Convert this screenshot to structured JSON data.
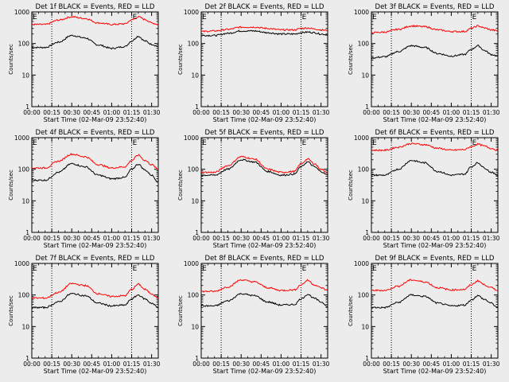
{
  "figure": {
    "xlabel": "Start Time (02-Mar-09 23:52:40)",
    "ylabel": "Counts/sec",
    "x_ticks": [
      "00:00",
      "00:15",
      "00:30",
      "00:45",
      "01:00",
      "01:15",
      "01:30"
    ],
    "y_ticks": [
      "1",
      "10",
      "100",
      "1000"
    ],
    "marker_labels": [
      "E",
      "E"
    ]
  },
  "colors": {
    "events": "#000000",
    "lld": "#ff0000",
    "background": "#ececec"
  },
  "chart_data": [
    {
      "type": "line",
      "title": "Det 1f BLACK = Events, RED = LLD",
      "x": [
        0,
        10,
        20,
        30,
        40,
        50,
        60,
        70,
        75,
        80,
        85,
        90,
        95
      ],
      "yscale": "log",
      "ylim": [
        1,
        1000
      ],
      "xlim": [
        0,
        95
      ],
      "series": [
        {
          "name": "Events",
          "values": [
            75,
            75,
            110,
            180,
            150,
            90,
            70,
            80,
            120,
            170,
            120,
            95,
            80
          ]
        },
        {
          "name": "LLD",
          "values": [
            400,
            400,
            550,
            700,
            620,
            450,
            400,
            420,
            560,
            700,
            580,
            450,
            400
          ]
        }
      ],
      "markers": [
        15,
        75
      ]
    },
    {
      "type": "line",
      "title": "Det 2f BLACK = Events, RED = LLD",
      "x": [
        0,
        10,
        20,
        30,
        40,
        50,
        60,
        70,
        75,
        80,
        85,
        90,
        95
      ],
      "yscale": "log",
      "ylim": [
        1,
        1000
      ],
      "xlim": [
        0,
        95
      ],
      "series": [
        {
          "name": "Events",
          "values": [
            180,
            180,
            210,
            250,
            250,
            220,
            200,
            200,
            220,
            230,
            220,
            200,
            190
          ]
        },
        {
          "name": "LLD",
          "values": [
            240,
            250,
            280,
            330,
            330,
            300,
            270,
            270,
            300,
            310,
            290,
            270,
            260
          ]
        }
      ],
      "markers": [
        15,
        75
      ]
    },
    {
      "type": "line",
      "title": "Det 3f BLACK = Events, RED = LLD",
      "x": [
        0,
        10,
        20,
        30,
        40,
        50,
        60,
        70,
        75,
        80,
        85,
        90,
        95
      ],
      "yscale": "log",
      "ylim": [
        1,
        1000
      ],
      "xlim": [
        0,
        95
      ],
      "series": [
        {
          "name": "Events",
          "values": [
            35,
            38,
            55,
            85,
            75,
            48,
            40,
            45,
            65,
            85,
            60,
            45,
            40
          ]
        },
        {
          "name": "LLD",
          "values": [
            220,
            230,
            280,
            360,
            340,
            270,
            240,
            240,
            300,
            360,
            310,
            270,
            250
          ]
        }
      ],
      "markers": [
        15,
        75
      ]
    },
    {
      "type": "line",
      "title": "Det 4f BLACK = Events, RED = LLD",
      "x": [
        0,
        10,
        20,
        30,
        40,
        50,
        60,
        70,
        75,
        80,
        85,
        90,
        95
      ],
      "yscale": "log",
      "ylim": [
        1,
        1000
      ],
      "xlim": [
        0,
        95
      ],
      "series": [
        {
          "name": "Events",
          "values": [
            45,
            45,
            80,
            150,
            120,
            65,
            50,
            55,
            100,
            145,
            95,
            65,
            40
          ]
        },
        {
          "name": "LLD",
          "values": [
            110,
            110,
            180,
            300,
            250,
            140,
            110,
            120,
            190,
            280,
            190,
            140,
            100
          ]
        }
      ],
      "markers": [
        15,
        75
      ]
    },
    {
      "type": "line",
      "title": "Det 5f BLACK = Events, RED = LLD",
      "x": [
        0,
        10,
        20,
        30,
        40,
        50,
        60,
        70,
        75,
        80,
        85,
        90,
        95
      ],
      "yscale": "log",
      "ylim": [
        1,
        1000
      ],
      "xlim": [
        0,
        95
      ],
      "series": [
        {
          "name": "Events",
          "values": [
            65,
            65,
            100,
            200,
            170,
            85,
            65,
            70,
            120,
            170,
            120,
            85,
            65
          ]
        },
        {
          "name": "LLD",
          "values": [
            80,
            80,
            130,
            250,
            210,
            100,
            80,
            85,
            150,
            210,
            150,
            100,
            80
          ]
        }
      ],
      "markers": [
        15,
        75
      ]
    },
    {
      "type": "line",
      "title": "Det 6f BLACK = Events, RED = LLD",
      "x": [
        0,
        10,
        20,
        30,
        40,
        50,
        60,
        70,
        75,
        80,
        85,
        90,
        95
      ],
      "yscale": "log",
      "ylim": [
        1,
        1000
      ],
      "xlim": [
        0,
        95
      ],
      "series": [
        {
          "name": "Events",
          "values": [
            65,
            65,
            100,
            190,
            160,
            85,
            65,
            70,
            120,
            160,
            110,
            80,
            65
          ]
        },
        {
          "name": "LLD",
          "values": [
            400,
            400,
            500,
            650,
            600,
            460,
            400,
            420,
            520,
            620,
            540,
            460,
            400
          ]
        }
      ],
      "markers": [
        15,
        75
      ]
    },
    {
      "type": "line",
      "title": "Det 7f BLACK = Events, RED = LLD",
      "x": [
        0,
        10,
        20,
        30,
        40,
        50,
        60,
        70,
        75,
        80,
        85,
        90,
        95
      ],
      "yscale": "log",
      "ylim": [
        1,
        1000
      ],
      "xlim": [
        0,
        95
      ],
      "series": [
        {
          "name": "Events",
          "values": [
            40,
            40,
            60,
            110,
            95,
            55,
            45,
            48,
            75,
            100,
            75,
            55,
            40
          ]
        },
        {
          "name": "LLD",
          "values": [
            80,
            80,
            120,
            230,
            200,
            110,
            90,
            95,
            150,
            220,
            150,
            110,
            80
          ]
        }
      ],
      "markers": [
        15,
        75
      ]
    },
    {
      "type": "line",
      "title": "Det 8f BLACK = Events, RED = LLD",
      "x": [
        0,
        10,
        20,
        30,
        40,
        50,
        60,
        70,
        75,
        80,
        85,
        90,
        95
      ],
      "yscale": "log",
      "ylim": [
        1,
        1000
      ],
      "xlim": [
        0,
        95
      ],
      "series": [
        {
          "name": "Events",
          "values": [
            45,
            45,
            65,
            110,
            95,
            60,
            48,
            50,
            75,
            105,
            78,
            60,
            45
          ]
        },
        {
          "name": "LLD",
          "values": [
            130,
            130,
            180,
            300,
            260,
            170,
            140,
            145,
            210,
            290,
            210,
            170,
            140
          ]
        }
      ],
      "markers": [
        15,
        75
      ]
    },
    {
      "type": "line",
      "title": "Det 9f BLACK = Events, RED = LLD",
      "x": [
        0,
        10,
        20,
        30,
        40,
        50,
        60,
        70,
        75,
        80,
        85,
        90,
        95
      ],
      "yscale": "log",
      "ylim": [
        1,
        1000
      ],
      "xlim": [
        0,
        95
      ],
      "series": [
        {
          "name": "Events",
          "values": [
            40,
            40,
            58,
            100,
            90,
            55,
            45,
            48,
            70,
            95,
            72,
            55,
            40
          ]
        },
        {
          "name": "LLD",
          "values": [
            140,
            140,
            190,
            300,
            260,
            170,
            145,
            150,
            210,
            280,
            210,
            170,
            140
          ]
        }
      ],
      "markers": [
        15,
        75
      ]
    }
  ]
}
